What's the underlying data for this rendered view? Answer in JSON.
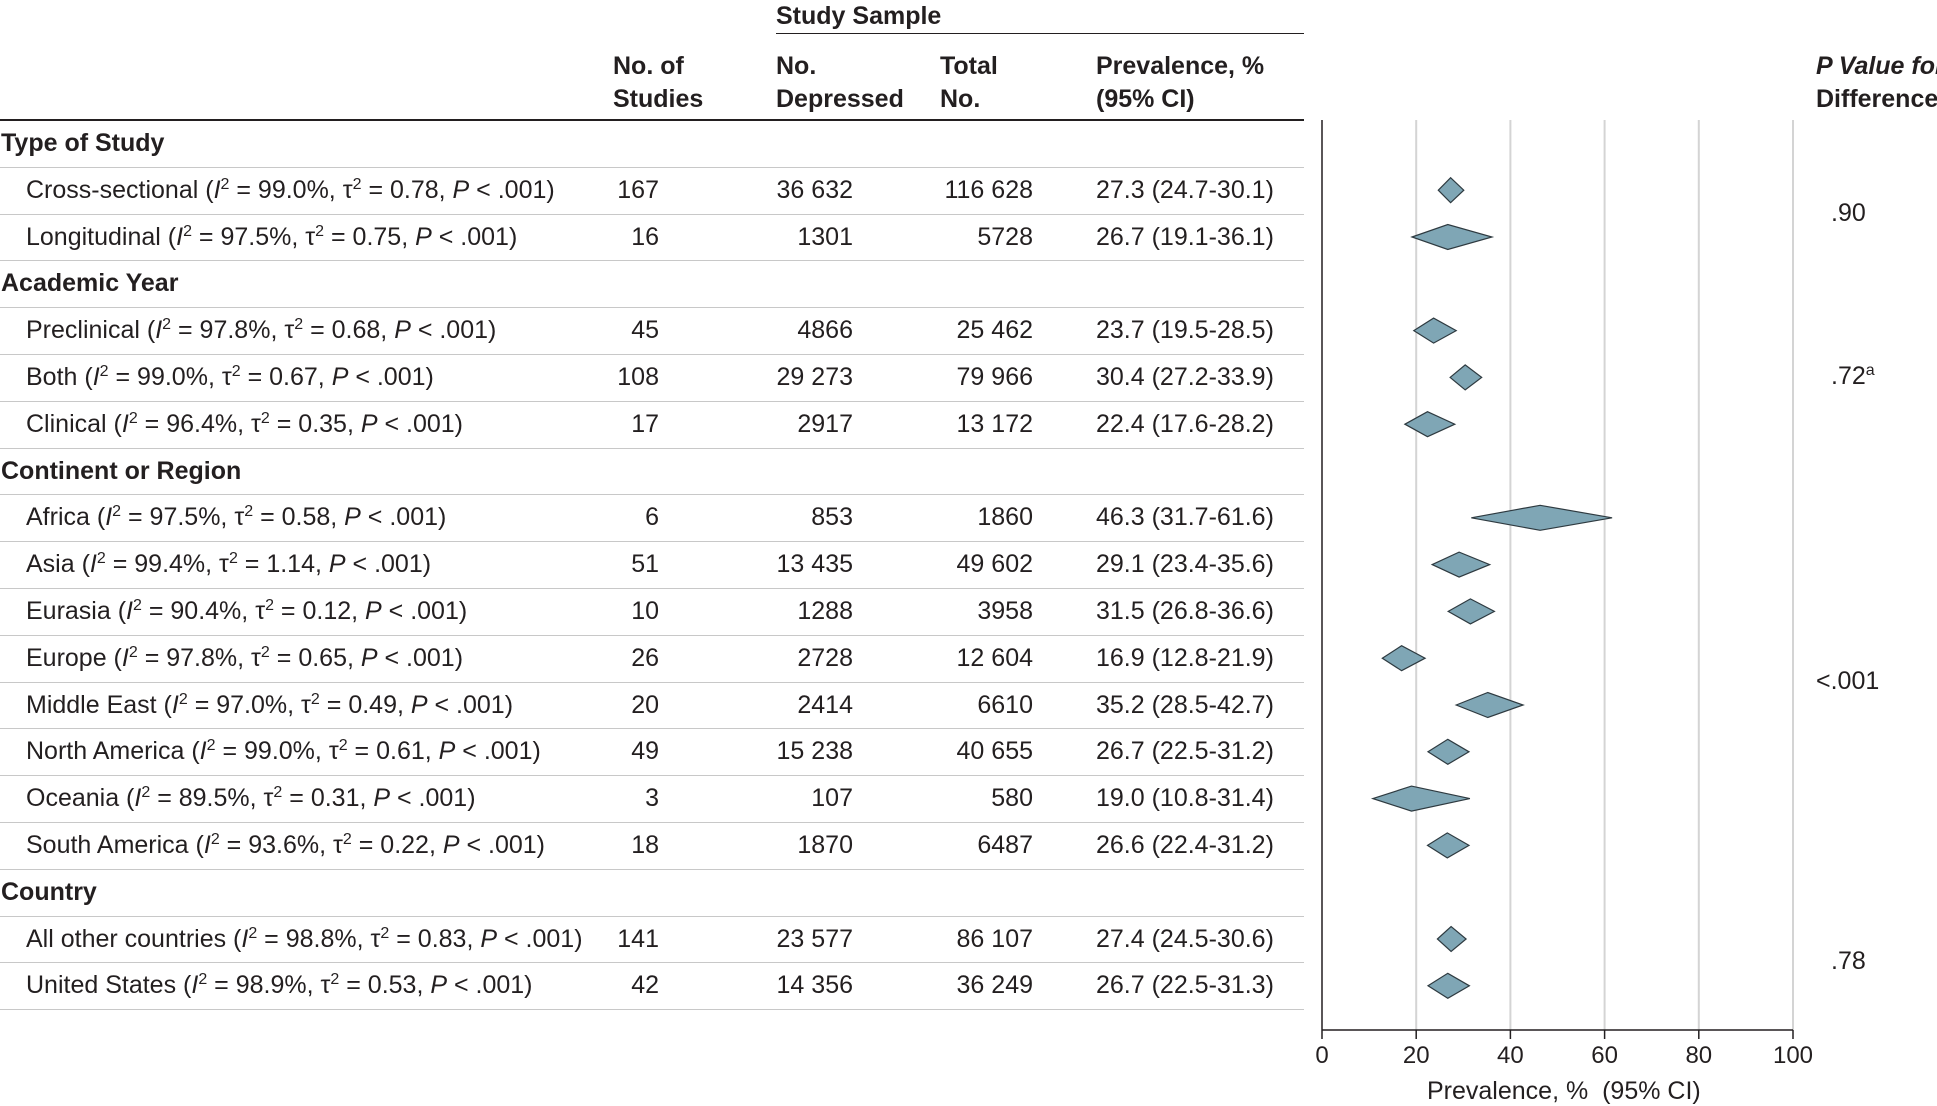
{
  "headers": {
    "study_sample": "Study Sample",
    "no_of_studies": [
      "No. of",
      "Studies"
    ],
    "no_depressed": [
      "No.",
      "Depressed"
    ],
    "total_no": [
      "Total",
      "No."
    ],
    "prevalence": [
      "Prevalence, %",
      "(95% CI)"
    ],
    "p_value": [
      "P Value for",
      "Difference"
    ]
  },
  "stat_labels": {
    "i": "I",
    "i_sup": "2",
    "tau": "τ",
    "tau_sup": "2",
    "p": "P"
  },
  "chart_data": {
    "type": "forest",
    "xlabel": "Prevalence, %  (95% CI)",
    "xlim": [
      0,
      100
    ],
    "xticks": [
      0,
      20,
      40,
      60,
      80,
      100
    ],
    "gridlines": [
      20,
      40,
      60,
      80,
      100
    ],
    "groups": [
      {
        "title": "Type of Study",
        "p_value": ".90",
        "p_value_sup": "",
        "rows": [
          {
            "label": "Cross-sectional",
            "i2": "99.0%",
            "tau2": "0.78",
            "p": "< .001",
            "studies": "167",
            "depressed": "36 632",
            "total": "116 628",
            "prevalence": "27.3 (24.7-30.1)",
            "est": 27.3,
            "lo": 24.7,
            "hi": 30.1
          },
          {
            "label": "Longitudinal",
            "i2": "97.5%",
            "tau2": "0.75",
            "p": "< .001",
            "studies": "16",
            "depressed": "1301",
            "total": "5728",
            "prevalence": "26.7 (19.1-36.1)",
            "est": 26.7,
            "lo": 19.1,
            "hi": 36.1
          }
        ]
      },
      {
        "title": "Academic Year",
        "p_value": ".72",
        "p_value_sup": "a",
        "rows": [
          {
            "label": "Preclinical",
            "i2": "97.8%",
            "tau2": "0.68",
            "p": "< .001",
            "studies": "45",
            "depressed": "4866",
            "total": "25 462",
            "prevalence": "23.7 (19.5-28.5)",
            "est": 23.7,
            "lo": 19.5,
            "hi": 28.5
          },
          {
            "label": "Both",
            "i2": "99.0%",
            "tau2": "0.67",
            "p": "< .001",
            "studies": "108",
            "depressed": "29 273",
            "total": "79 966",
            "prevalence": "30.4 (27.2-33.9)",
            "est": 30.4,
            "lo": 27.2,
            "hi": 33.9
          },
          {
            "label": "Clinical",
            "i2": "96.4%",
            "tau2": "0.35",
            "p": "< .001",
            "studies": "17",
            "depressed": "2917",
            "total": "13 172",
            "prevalence": "22.4 (17.6-28.2)",
            "est": 22.4,
            "lo": 17.6,
            "hi": 28.2
          }
        ]
      },
      {
        "title": "Continent or Region",
        "p_value": "<.001",
        "p_value_sup": "",
        "rows": [
          {
            "label": "Africa",
            "i2": "97.5%",
            "tau2": "0.58",
            "p": "< .001",
            "studies": "6",
            "depressed": "853",
            "total": "1860",
            "prevalence": "46.3 (31.7-61.6)",
            "est": 46.3,
            "lo": 31.7,
            "hi": 61.6
          },
          {
            "label": "Asia",
            "i2": "99.4%",
            "tau2": "1.14",
            "p": "< .001",
            "studies": "51",
            "depressed": "13 435",
            "total": "49 602",
            "prevalence": "29.1 (23.4-35.6)",
            "est": 29.1,
            "lo": 23.4,
            "hi": 35.6
          },
          {
            "label": "Eurasia",
            "i2": "90.4%",
            "tau2": "0.12",
            "p": "< .001",
            "studies": "10",
            "depressed": "1288",
            "total": "3958",
            "prevalence": "31.5 (26.8-36.6)",
            "est": 31.5,
            "lo": 26.8,
            "hi": 36.6
          },
          {
            "label": "Europe",
            "i2": "97.8%",
            "tau2": "0.65",
            "p": "< .001",
            "studies": "26",
            "depressed": "2728",
            "total": "12 604",
            "prevalence": "16.9 (12.8-21.9)",
            "est": 16.9,
            "lo": 12.8,
            "hi": 21.9
          },
          {
            "label": "Middle East",
            "i2": "97.0%",
            "tau2": "0.49",
            "p": "< .001",
            "studies": "20",
            "depressed": "2414",
            "total": "6610",
            "prevalence": "35.2 (28.5-42.7)",
            "est": 35.2,
            "lo": 28.5,
            "hi": 42.7
          },
          {
            "label": "North America",
            "i2": "99.0%",
            "tau2": "0.61",
            "p": "< .001",
            "studies": "49",
            "depressed": "15 238",
            "total": "40 655",
            "prevalence": "26.7 (22.5-31.2)",
            "est": 26.7,
            "lo": 22.5,
            "hi": 31.2
          },
          {
            "label": "Oceania",
            "i2": "89.5%",
            "tau2": "0.31",
            "p": "< .001",
            "studies": "3",
            "depressed": "107",
            "total": "580",
            "prevalence": "19.0 (10.8-31.4)",
            "est": 19.0,
            "lo": 10.8,
            "hi": 31.4
          },
          {
            "label": "South America",
            "i2": "93.6%",
            "tau2": "0.22",
            "p": "< .001",
            "studies": "18",
            "depressed": "1870",
            "total": "6487",
            "prevalence": "26.6 (22.4-31.2)",
            "est": 26.6,
            "lo": 22.4,
            "hi": 31.2
          }
        ]
      },
      {
        "title": "Country",
        "p_value": ".78",
        "p_value_sup": "",
        "rows": [
          {
            "label": "All other countries",
            "i2": "98.8%",
            "tau2": "0.83",
            "p": "< .001",
            "studies": "141",
            "depressed": "23 577",
            "total": "86 107",
            "prevalence": "27.4 (24.5-30.6)",
            "est": 27.4,
            "lo": 24.5,
            "hi": 30.6
          },
          {
            "label": "United States",
            "i2": "98.9%",
            "tau2": "0.53",
            "p": "< .001",
            "studies": "42",
            "depressed": "14 356",
            "total": "36 249",
            "prevalence": "26.7 (22.5-31.3)",
            "est": 26.7,
            "lo": 22.5,
            "hi": 31.3
          }
        ]
      }
    ]
  },
  "colors": {
    "diamond_fill": "#7fa6b5",
    "diamond_stroke": "#2e3a40",
    "grid": "#d4d4d4",
    "text": "#231f20"
  }
}
